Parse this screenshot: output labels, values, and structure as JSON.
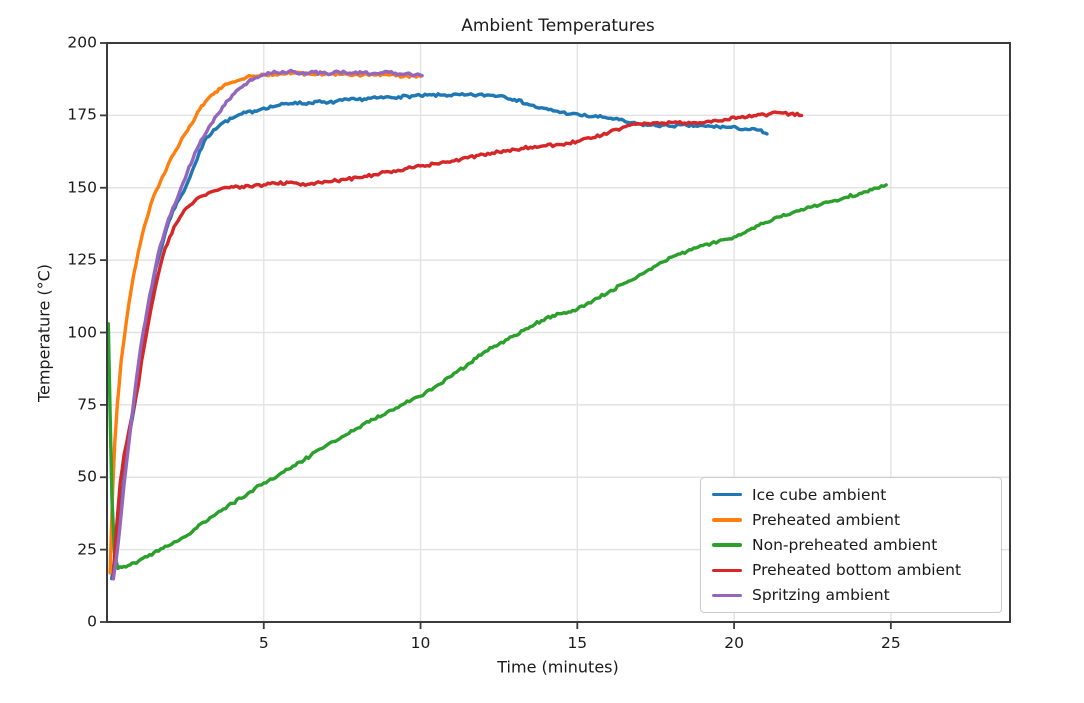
{
  "figure": {
    "background": "#ffffff"
  },
  "colors": {
    "text": "#1a1a1a",
    "spine": "#3b3b3b",
    "grid": "#e3e3e3",
    "legend_border": "#cccccc",
    "background": "#ffffff"
  },
  "chart_data": {
    "type": "line",
    "title": "Ambient Temperatures",
    "xlabel": "Time (minutes)",
    "ylabel": "Temperature (°C)",
    "xlim": [
      0,
      28.8
    ],
    "ylim": [
      0,
      200
    ],
    "xticks": [
      5,
      10,
      15,
      20,
      25
    ],
    "yticks": [
      0,
      25,
      50,
      75,
      100,
      125,
      150,
      175,
      200
    ],
    "grid": true,
    "legend": {
      "location": "lower right",
      "entries": [
        "Ice cube ambient",
        "Preheated ambient",
        "Non-preheated ambient",
        "Preheated bottom ambient",
        "Spritzing ambient"
      ]
    },
    "series": [
      {
        "name": "Ice cube ambient",
        "color": "#1f77b4",
        "points": [
          [
            0.15,
            15
          ],
          [
            0.25,
            22
          ],
          [
            0.35,
            30
          ],
          [
            0.5,
            45
          ],
          [
            0.65,
            60
          ],
          [
            0.8,
            70
          ],
          [
            0.9,
            76
          ],
          [
            1.0,
            84
          ],
          [
            1.1,
            91
          ],
          [
            1.25,
            100
          ],
          [
            1.4,
            112
          ],
          [
            1.55,
            122
          ],
          [
            1.7,
            128
          ],
          [
            1.9,
            136
          ],
          [
            2.1,
            142
          ],
          [
            2.3,
            146
          ],
          [
            2.5,
            150
          ],
          [
            2.8,
            158
          ],
          [
            3.1,
            166
          ],
          [
            3.4,
            170
          ],
          [
            3.7,
            172.5
          ],
          [
            4.0,
            174
          ],
          [
            4.3,
            175.5
          ],
          [
            4.7,
            176.5
          ],
          [
            5.0,
            177.5
          ],
          [
            5.5,
            178.5
          ],
          [
            6.0,
            179.5
          ],
          [
            6.3,
            179
          ],
          [
            6.7,
            179.8
          ],
          [
            7.0,
            179.2
          ],
          [
            7.5,
            180.2
          ],
          [
            8.0,
            180.5
          ],
          [
            8.6,
            181
          ],
          [
            9.3,
            181.4
          ],
          [
            10.0,
            181.8
          ],
          [
            10.7,
            182
          ],
          [
            11.4,
            182
          ],
          [
            12.1,
            182
          ],
          [
            12.6,
            181.8
          ],
          [
            13.0,
            180.5
          ],
          [
            13.4,
            179
          ],
          [
            13.8,
            177.5
          ],
          [
            14.3,
            176.5
          ],
          [
            14.8,
            175.5
          ],
          [
            15.3,
            174.8
          ],
          [
            15.8,
            174.4
          ],
          [
            16.2,
            173.8
          ],
          [
            16.6,
            172.6
          ],
          [
            16.9,
            172
          ],
          [
            17.3,
            171.6
          ],
          [
            17.9,
            171.4
          ],
          [
            18.5,
            171.5
          ],
          [
            19.1,
            171.2
          ],
          [
            19.7,
            171
          ],
          [
            20.1,
            170.6
          ],
          [
            20.5,
            170.1
          ],
          [
            20.8,
            169.9
          ],
          [
            21.05,
            168.6
          ]
        ]
      },
      {
        "name": "Preheated ambient",
        "color": "#ff7f0e",
        "points": [
          [
            0.1,
            17
          ],
          [
            0.18,
            45
          ],
          [
            0.25,
            62
          ],
          [
            0.33,
            75
          ],
          [
            0.45,
            90
          ],
          [
            0.55,
            98
          ],
          [
            0.7,
            110
          ],
          [
            0.85,
            120
          ],
          [
            1.0,
            128
          ],
          [
            1.2,
            137
          ],
          [
            1.45,
            146
          ],
          [
            1.7,
            152
          ],
          [
            1.95,
            158
          ],
          [
            2.2,
            163
          ],
          [
            2.45,
            168
          ],
          [
            2.7,
            172
          ],
          [
            2.95,
            177
          ],
          [
            3.2,
            180.5
          ],
          [
            3.45,
            183
          ],
          [
            3.7,
            185
          ],
          [
            4.0,
            186.5
          ],
          [
            4.3,
            187.5
          ],
          [
            4.6,
            188.5
          ],
          [
            5.0,
            189
          ],
          [
            5.5,
            189.4
          ],
          [
            6.0,
            189.6
          ],
          [
            6.5,
            189.2
          ],
          [
            7.0,
            189.5
          ],
          [
            7.5,
            189.2
          ],
          [
            8.0,
            189.1
          ],
          [
            8.5,
            189
          ],
          [
            9.0,
            188.9
          ],
          [
            9.5,
            188.7
          ],
          [
            10.0,
            188.5
          ]
        ]
      },
      {
        "name": "Non-preheated ambient",
        "color": "#2ca02c",
        "points": [
          [
            0.04,
            103
          ],
          [
            0.1,
            72
          ],
          [
            0.16,
            42
          ],
          [
            0.24,
            24
          ],
          [
            0.35,
            18.5
          ],
          [
            0.6,
            19
          ],
          [
            1.0,
            21
          ],
          [
            1.5,
            24
          ],
          [
            2.0,
            26.5
          ],
          [
            2.5,
            29.5
          ],
          [
            3.0,
            34
          ],
          [
            3.5,
            37.5
          ],
          [
            4.0,
            41
          ],
          [
            4.5,
            44.5
          ],
          [
            5.0,
            48
          ],
          [
            5.5,
            51
          ],
          [
            6.0,
            54
          ],
          [
            6.5,
            57.5
          ],
          [
            7.0,
            61
          ],
          [
            7.5,
            64
          ],
          [
            8.0,
            67
          ],
          [
            8.5,
            70
          ],
          [
            9.0,
            73
          ],
          [
            9.5,
            75.5
          ],
          [
            10.0,
            78
          ],
          [
            10.5,
            81.5
          ],
          [
            11.0,
            85
          ],
          [
            11.5,
            89
          ],
          [
            12.0,
            93
          ],
          [
            12.5,
            96
          ],
          [
            13.0,
            99
          ],
          [
            13.5,
            102
          ],
          [
            14.0,
            105
          ],
          [
            14.5,
            106.5
          ],
          [
            15.0,
            108
          ],
          [
            15.5,
            111
          ],
          [
            16.0,
            114
          ],
          [
            16.5,
            117
          ],
          [
            17.0,
            120
          ],
          [
            17.5,
            123
          ],
          [
            18.0,
            126
          ],
          [
            18.5,
            128
          ],
          [
            19.0,
            130
          ],
          [
            19.5,
            131.5
          ],
          [
            20.0,
            133
          ],
          [
            20.5,
            135.5
          ],
          [
            21.0,
            138
          ],
          [
            21.5,
            140
          ],
          [
            22.0,
            142
          ],
          [
            22.5,
            143.5
          ],
          [
            23.0,
            145
          ],
          [
            23.5,
            146.5
          ],
          [
            24.0,
            148
          ],
          [
            24.4,
            149.3
          ],
          [
            24.85,
            151
          ]
        ]
      },
      {
        "name": "Preheated bottom ambient",
        "color": "#d62728",
        "points": [
          [
            0.2,
            15
          ],
          [
            0.3,
            32
          ],
          [
            0.42,
            48
          ],
          [
            0.55,
            58
          ],
          [
            0.7,
            66
          ],
          [
            0.85,
            74
          ],
          [
            1.0,
            82
          ],
          [
            1.1,
            90
          ],
          [
            1.25,
            99
          ],
          [
            1.4,
            108
          ],
          [
            1.55,
            116
          ],
          [
            1.7,
            123
          ],
          [
            1.85,
            129
          ],
          [
            2.0,
            133
          ],
          [
            2.2,
            137.5
          ],
          [
            2.4,
            141
          ],
          [
            2.6,
            143.5
          ],
          [
            2.8,
            145.5
          ],
          [
            3.0,
            147
          ],
          [
            3.3,
            148.5
          ],
          [
            3.6,
            149.5
          ],
          [
            3.9,
            150
          ],
          [
            4.3,
            150.4
          ],
          [
            4.7,
            150.8
          ],
          [
            5.0,
            151
          ],
          [
            5.4,
            151.4
          ],
          [
            5.8,
            151.8
          ],
          [
            6.1,
            151.4
          ],
          [
            6.4,
            151.2
          ],
          [
            6.8,
            151.8
          ],
          [
            7.2,
            152.3
          ],
          [
            7.6,
            152.8
          ],
          [
            8.0,
            153.5
          ],
          [
            8.5,
            154.5
          ],
          [
            9.0,
            155.5
          ],
          [
            9.5,
            156.5
          ],
          [
            10.0,
            157.5
          ],
          [
            10.5,
            158.3
          ],
          [
            11.0,
            159.2
          ],
          [
            11.5,
            160.3
          ],
          [
            12.0,
            161.5
          ],
          [
            12.5,
            162.4
          ],
          [
            13.0,
            163.2
          ],
          [
            13.5,
            164
          ],
          [
            14.0,
            164.5
          ],
          [
            14.5,
            164.9
          ],
          [
            15.0,
            166
          ],
          [
            15.5,
            167.3
          ],
          [
            16.0,
            169
          ],
          [
            16.4,
            170.5
          ],
          [
            16.8,
            172
          ],
          [
            17.2,
            172.2
          ],
          [
            17.7,
            172.4
          ],
          [
            18.2,
            172.5
          ],
          [
            18.7,
            172.5
          ],
          [
            19.2,
            173
          ],
          [
            19.7,
            173.6
          ],
          [
            20.2,
            174.3
          ],
          [
            20.7,
            174.9
          ],
          [
            21.1,
            175.4
          ],
          [
            21.5,
            175.9
          ],
          [
            21.8,
            175.5
          ],
          [
            22.15,
            175
          ]
        ]
      },
      {
        "name": "Spritzing ambient",
        "color": "#9467bd",
        "points": [
          [
            0.2,
            15
          ],
          [
            0.3,
            22
          ],
          [
            0.42,
            34
          ],
          [
            0.55,
            48
          ],
          [
            0.7,
            62
          ],
          [
            0.85,
            76
          ],
          [
            1.0,
            89
          ],
          [
            1.15,
            100
          ],
          [
            1.3,
            109
          ],
          [
            1.5,
            120
          ],
          [
            1.7,
            130
          ],
          [
            1.9,
            137
          ],
          [
            2.1,
            143
          ],
          [
            2.3,
            148
          ],
          [
            2.55,
            155
          ],
          [
            2.8,
            162
          ],
          [
            3.0,
            166.5
          ],
          [
            3.25,
            171
          ],
          [
            3.5,
            175
          ],
          [
            3.75,
            178.5
          ],
          [
            4.0,
            182
          ],
          [
            4.25,
            184.5
          ],
          [
            4.5,
            186.5
          ],
          [
            4.75,
            188
          ],
          [
            5.0,
            189.2
          ],
          [
            5.4,
            189.8
          ],
          [
            5.8,
            190.2
          ],
          [
            6.2,
            189.5
          ],
          [
            6.6,
            189.9
          ],
          [
            7.0,
            189.4
          ],
          [
            7.4,
            190
          ],
          [
            7.8,
            189.5
          ],
          [
            8.2,
            189.8
          ],
          [
            8.6,
            189.4
          ],
          [
            9.0,
            189.9
          ],
          [
            9.4,
            189.2
          ],
          [
            9.7,
            189.1
          ],
          [
            10.05,
            188.7
          ]
        ]
      }
    ]
  }
}
